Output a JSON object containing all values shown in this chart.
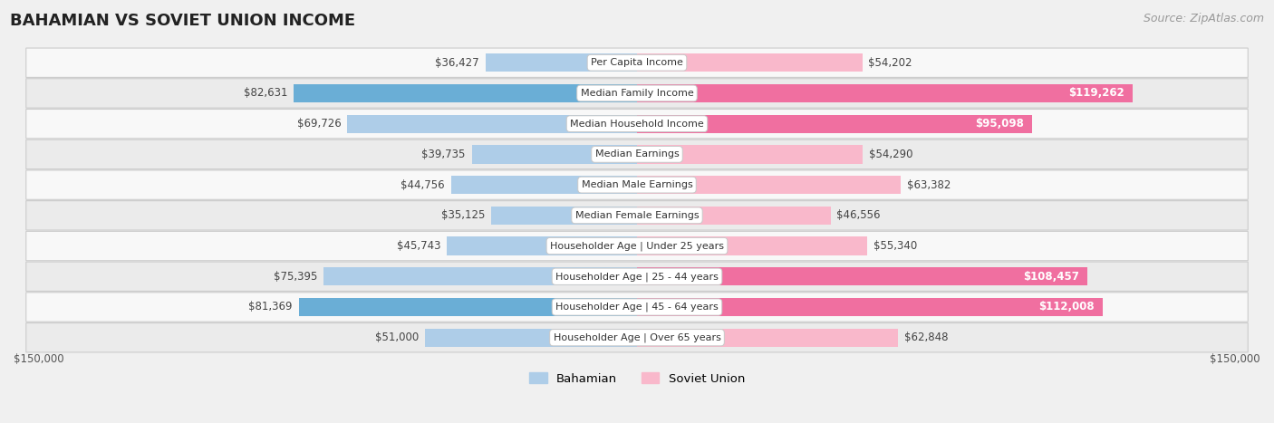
{
  "title": "BAHAMIAN VS SOVIET UNION INCOME",
  "source": "Source: ZipAtlas.com",
  "categories": [
    "Per Capita Income",
    "Median Family Income",
    "Median Household Income",
    "Median Earnings",
    "Median Male Earnings",
    "Median Female Earnings",
    "Householder Age | Under 25 years",
    "Householder Age | 25 - 44 years",
    "Householder Age | 45 - 64 years",
    "Householder Age | Over 65 years"
  ],
  "bahamian_values": [
    36427,
    82631,
    69726,
    39735,
    44756,
    35125,
    45743,
    75395,
    81369,
    51000
  ],
  "soviet_values": [
    54202,
    119262,
    95098,
    54290,
    63382,
    46556,
    55340,
    108457,
    112008,
    62848
  ],
  "bahamian_light": "#aecde8",
  "bahamian_dark": "#6aaed6",
  "soviet_light": "#f9b8cb",
  "soviet_dark": "#f06fa0",
  "dark_threshold": 0.52,
  "max_val": 150000,
  "bg_color": "#f0f0f0",
  "row_bg_even": "#f8f8f8",
  "row_bg_odd": "#ebebeb",
  "title_fontsize": 13,
  "source_fontsize": 9,
  "value_fontsize": 8.5,
  "label_fontsize": 8.0,
  "axis_label_fontsize": 8.5
}
